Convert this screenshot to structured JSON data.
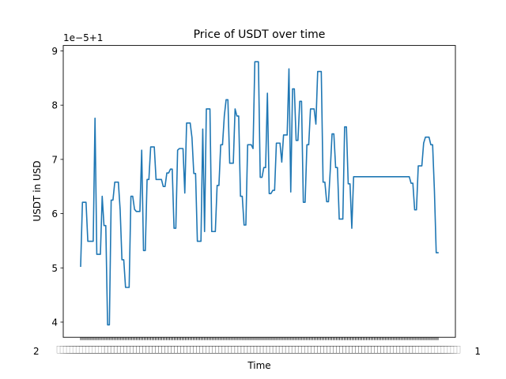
{
  "chart_data": {
    "type": "line",
    "title": "Price of USDT over time",
    "xlabel": "Time",
    "ylabel": "USDT in USD",
    "y_offset_label": "1e−5+1",
    "yticks": [
      "4",
      "5",
      "6",
      "7",
      "8",
      "9"
    ],
    "ytick_values": [
      4,
      5,
      6,
      7,
      8,
      9
    ],
    "ylim": [
      3.72,
      9.1
    ],
    "x_tick_count": 226,
    "x_tick_text_left": "2",
    "x_tick_text_right": "1",
    "grid": false,
    "legend": "none",
    "color": "#1f77b4",
    "series": [
      {
        "values": [
          5.03,
          6.21,
          6.21,
          6.21,
          5.49,
          5.49,
          5.49,
          5.49,
          7.76,
          5.25,
          5.25,
          5.25,
          6.32,
          5.78,
          5.78,
          3.95,
          3.95,
          6.25,
          6.25,
          6.58,
          6.58,
          6.58,
          6.07,
          5.15,
          5.15,
          4.64,
          4.64,
          4.64,
          6.32,
          6.32,
          6.08,
          6.04,
          6.04,
          6.04,
          7.17,
          5.32,
          5.32,
          6.63,
          6.63,
          7.23,
          7.23,
          7.23,
          6.63,
          6.63,
          6.63,
          6.63,
          6.5,
          6.5,
          6.75,
          6.75,
          6.82,
          6.82,
          5.73,
          5.73,
          7.17,
          7.2,
          7.2,
          7.2,
          6.38,
          7.67,
          7.67,
          7.67,
          7.4,
          6.74,
          6.74,
          5.49,
          5.49,
          5.49,
          7.56,
          5.67,
          7.93,
          7.93,
          7.93,
          5.67,
          5.67,
          5.67,
          6.52,
          6.52,
          7.27,
          7.27,
          7.8,
          8.1,
          8.1,
          6.93,
          6.93,
          6.93,
          7.93,
          7.8,
          7.8,
          6.32,
          6.32,
          5.79,
          5.79,
          7.27,
          7.27,
          7.27,
          7.2,
          8.8,
          8.8,
          8.8,
          6.67,
          6.67,
          6.85,
          6.85,
          8.22,
          6.37,
          6.37,
          6.43,
          6.43,
          7.3,
          7.3,
          7.3,
          6.95,
          7.45,
          7.45,
          7.45,
          8.67,
          6.4,
          8.3,
          8.3,
          7.35,
          7.35,
          8.07,
          8.07,
          6.21,
          6.21,
          7.27,
          7.27,
          7.93,
          7.93,
          7.93,
          7.65,
          8.62,
          8.62,
          8.62,
          6.58,
          6.58,
          6.22,
          6.22,
          6.8,
          7.47,
          7.47,
          6.85,
          6.85,
          5.9,
          5.9,
          5.9,
          7.6,
          7.6,
          6.55,
          6.55,
          5.73,
          6.68,
          6.68,
          6.68,
          6.68,
          6.68,
          6.68,
          6.68,
          6.68,
          6.68,
          6.68,
          6.68,
          6.68,
          6.68,
          6.68,
          6.68,
          6.68,
          6.68,
          6.68,
          6.68,
          6.68,
          6.68,
          6.68,
          6.68,
          6.68,
          6.68,
          6.68,
          6.68,
          6.68,
          6.68,
          6.68,
          6.68,
          6.68,
          6.56,
          6.56,
          6.07,
          6.07,
          6.88,
          6.88,
          6.88,
          7.3,
          7.41,
          7.41,
          7.41,
          7.27,
          7.27,
          6.42,
          5.28,
          5.28
        ]
      }
    ]
  }
}
